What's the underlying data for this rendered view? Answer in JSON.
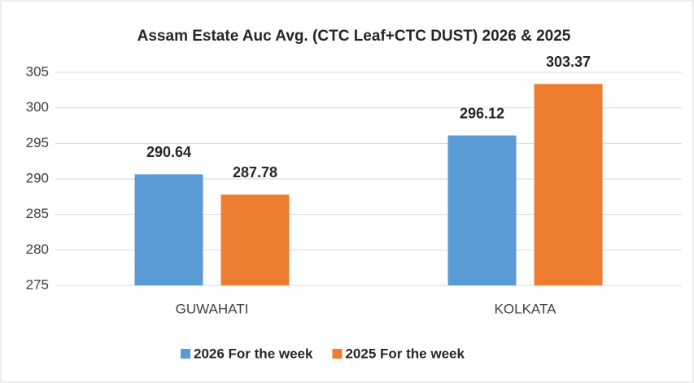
{
  "chart_data": {
    "type": "bar",
    "title": "Assam Estate Auc Avg. (CTC Leaf+CTC DUST) 2026 & 2025",
    "categories": [
      "GUWAHATI",
      "KOLKATA"
    ],
    "series": [
      {
        "name": "2026 For the week",
        "color": "#5b9bd5",
        "values": [
          290.64,
          296.12
        ]
      },
      {
        "name": "2025 For the week",
        "color": "#ed7d31",
        "values": [
          287.78,
          303.37
        ]
      }
    ],
    "ylim": [
      275,
      305
    ],
    "yticks": [
      275,
      280,
      285,
      290,
      295,
      300,
      305
    ],
    "grid": true,
    "legend": "bottom"
  }
}
